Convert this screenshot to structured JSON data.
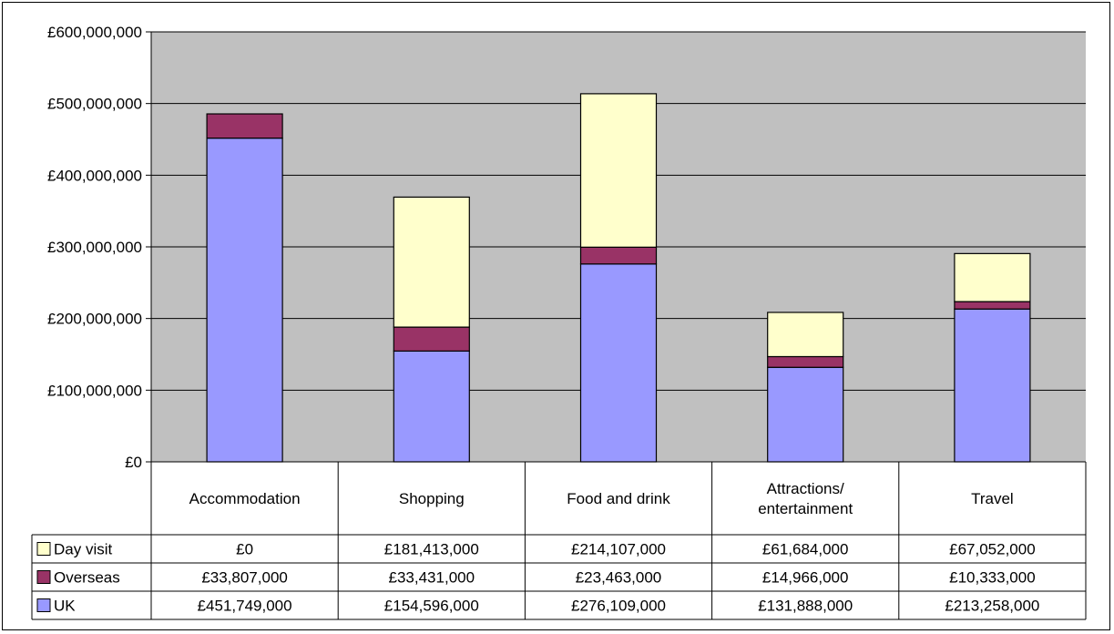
{
  "chart_data": {
    "type": "bar",
    "stacked": true,
    "categories": [
      "Accommodation",
      "Shopping",
      "Food and drink",
      "Attractions/ entertainment",
      "Travel"
    ],
    "category_lines": [
      [
        "Accommodation"
      ],
      [
        "Shopping"
      ],
      [
        "Food and drink"
      ],
      [
        "Attractions/",
        "entertainment"
      ],
      [
        "Travel"
      ]
    ],
    "series": [
      {
        "name": "UK",
        "color": "#9999ff",
        "values": [
          451749000,
          154596000,
          276109000,
          131888000,
          213258000
        ],
        "labels": [
          "£451,749,000",
          "£154,596,000",
          "£276,109,000",
          "£131,888,000",
          "£213,258,000"
        ]
      },
      {
        "name": "Overseas",
        "color": "#993366",
        "values": [
          33807000,
          33431000,
          23463000,
          14966000,
          10333000
        ],
        "labels": [
          "£33,807,000",
          "£33,431,000",
          "£23,463,000",
          "£14,966,000",
          "£10,333,000"
        ]
      },
      {
        "name": "Day visit",
        "color": "#ffffcc",
        "values": [
          0,
          181413000,
          214107000,
          61684000,
          67052000
        ],
        "labels": [
          "£0",
          "£181,413,000",
          "£214,107,000",
          "£61,684,000",
          "£67,052,000"
        ]
      }
    ],
    "table_row_order": [
      "Day visit",
      "Overseas",
      "UK"
    ],
    "ylim": [
      0,
      600000000
    ],
    "yticks": [
      0,
      100000000,
      200000000,
      300000000,
      400000000,
      500000000,
      600000000
    ],
    "ytick_labels": [
      "£0",
      "£100,000,000",
      "£200,000,000",
      "£300,000,000",
      "£400,000,000",
      "£500,000,000",
      "£600,000,000"
    ],
    "plot_background": "#c0c0c0",
    "grid": true,
    "legend": "data-table-below"
  }
}
